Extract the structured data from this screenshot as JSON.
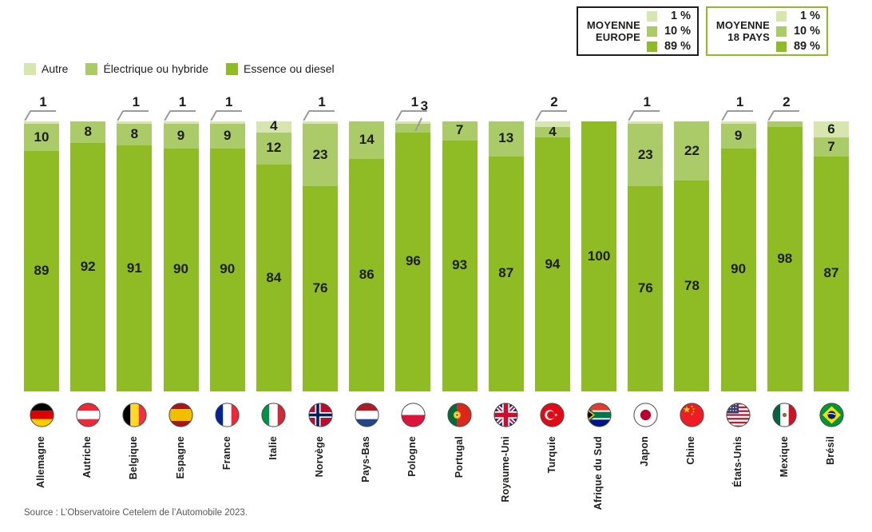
{
  "accent_colors": {
    "autre": "#d7e5ae",
    "electrique": "#abca68",
    "essence": "#8fbb25",
    "callout_line": "#9c9b9a",
    "text": "#1d1d1b"
  },
  "legend": {
    "items": [
      {
        "label": "Autre",
        "color": "#d7e5ae"
      },
      {
        "label": "Électrique ou hybride",
        "color": "#abca68"
      },
      {
        "label": "Essence ou diesel",
        "color": "#8fbb25"
      }
    ]
  },
  "summary_boxes": [
    {
      "title_line1": "MOYENNE",
      "title_line2": "EUROPE",
      "border_color": "#1d1d1b",
      "rows": [
        {
          "label": "Autre",
          "color": "#d7e5ae",
          "value": "1 %"
        },
        {
          "label": "Électrique ou hybride",
          "color": "#abca68",
          "value": "10 %"
        },
        {
          "label": "Essence ou diesel",
          "color": "#8fbb25",
          "value": "89 %"
        }
      ]
    },
    {
      "title_line1": "MOYENNE",
      "title_line2": "18 PAYS",
      "border_color": "#8fbb25",
      "rows": [
        {
          "label": "Autre",
          "color": "#d7e5ae",
          "value": "1 %"
        },
        {
          "label": "Électrique ou hybride",
          "color": "#abca68",
          "value": "10 %"
        },
        {
          "label": "Essence ou diesel",
          "color": "#8fbb25",
          "value": "89 %"
        }
      ]
    }
  ],
  "chart_data": {
    "type": "bar",
    "stacked": true,
    "unit": "%",
    "ylim": [
      0,
      100
    ],
    "categories": [
      "Allemagne",
      "Autriche",
      "Belgique",
      "Espagne",
      "France",
      "Italie",
      "Norvège",
      "Pays-Bas",
      "Pologne",
      "Portugal",
      "Royaume-Uni",
      "Turquie",
      "Afrique du Sud",
      "Japon",
      "Chine",
      "États-Unis",
      "Mexique",
      "Brésil"
    ],
    "flags": [
      "allemagne",
      "autriche",
      "belgique",
      "espagne",
      "france",
      "italie",
      "norvege",
      "pays-bas",
      "pologne",
      "portugal",
      "royaume-uni",
      "turquie",
      "afrique-du-sud",
      "japon",
      "chine",
      "etats-unis",
      "mexique",
      "bresil"
    ],
    "series": [
      {
        "key": "autre",
        "name": "Autre",
        "color": "#d7e5ae",
        "values": [
          1,
          0,
          1,
          1,
          1,
          4,
          1,
          0,
          1,
          0,
          0,
          2,
          0,
          1,
          0,
          1,
          0,
          6
        ]
      },
      {
        "key": "electrique",
        "name": "Électrique ou hybride",
        "color": "#abca68",
        "values": [
          10,
          8,
          8,
          9,
          9,
          12,
          23,
          14,
          3,
          7,
          13,
          4,
          0,
          23,
          22,
          9,
          2,
          7
        ]
      },
      {
        "key": "essence",
        "name": "Essence ou diesel",
        "color": "#8fbb25",
        "values": [
          89,
          92,
          91,
          90,
          90,
          84,
          76,
          86,
          96,
          93,
          87,
          94,
          100,
          76,
          78,
          90,
          98,
          87
        ]
      }
    ],
    "callouts": [
      [
        "autre"
      ],
      [],
      [
        "autre"
      ],
      [
        "autre"
      ],
      [
        "autre"
      ],
      [],
      [
        "autre"
      ],
      [],
      [
        "autre",
        "electrique"
      ],
      [],
      [],
      [
        "autre"
      ],
      [],
      [
        "autre"
      ],
      [],
      [
        "autre"
      ],
      [
        "electrique"
      ],
      []
    ]
  },
  "source": "Source : L’Observatoire Cetelem de l’Automobile 2023."
}
